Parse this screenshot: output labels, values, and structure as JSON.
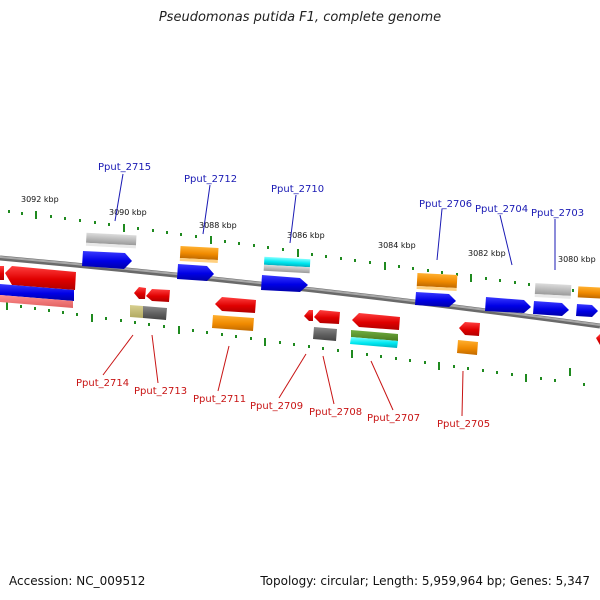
{
  "title": "Pseudomonas putida F1, complete genome",
  "footer": {
    "accession": "Accession: NC_009512",
    "summary": "Topology: circular; Length: 5,959,964 bp; Genes: 5,347"
  },
  "colors": {
    "backbone": "#8a8a8a",
    "ticks": "#1f8a1f",
    "forward_label": "#1a1ab4",
    "reverse_label": "#c81414"
  },
  "kbp_labels": [
    "3092 kbp",
    "3090 kbp",
    "3088 kbp",
    "3086 kbp",
    "3084 kbp",
    "3082 kbp",
    "3080 kbp"
  ],
  "forward_labels": [
    "Pput_2715",
    "Pput_2712",
    "Pput_2710",
    "Pput_2706",
    "Pput_2704",
    "Pput_2703"
  ],
  "reverse_labels": [
    "Pput_2714",
    "Pput_2713",
    "Pput_2711",
    "Pput_2709",
    "Pput_2708",
    "Pput_2707",
    "Pput_2705"
  ]
}
